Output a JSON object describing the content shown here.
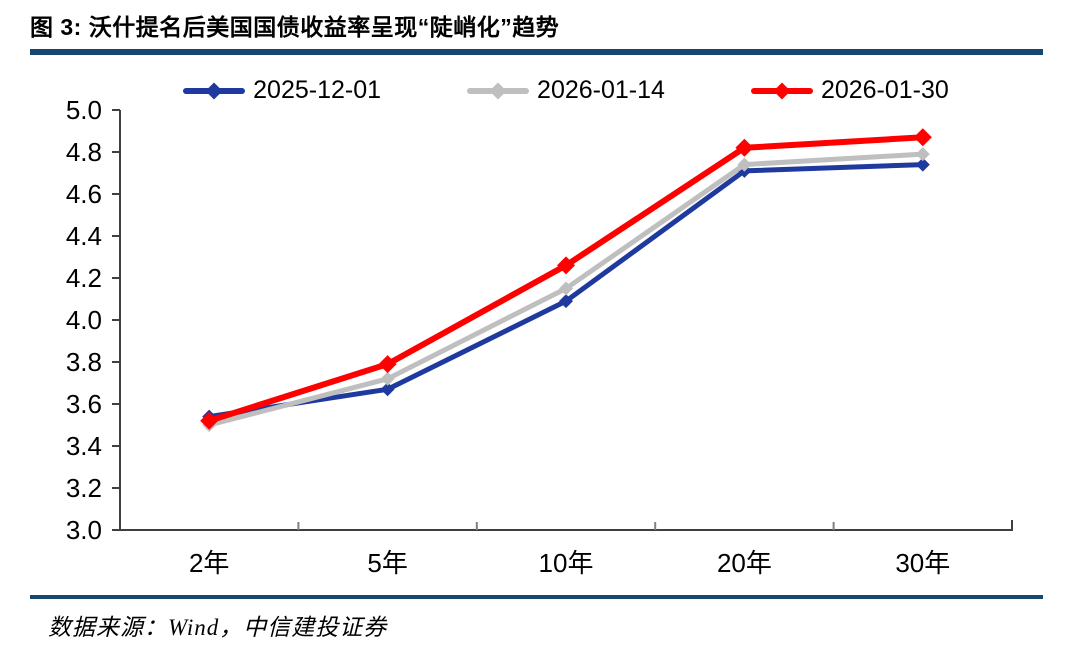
{
  "title": "图 3: 沃什提名后美国国债收益率呈现“陡峭化”趋势",
  "footer": {
    "source_text": "数据来源：Wind，中信建投证券"
  },
  "colors": {
    "rule": "#17466F",
    "axis": "#3F3F3F",
    "tick": "#808080",
    "text": "#000000"
  },
  "chart_data": {
    "type": "line",
    "categories": [
      "2年",
      "5年",
      "10年",
      "20年",
      "30年"
    ],
    "series": [
      {
        "name": "2025-12-01",
        "color": "#1F3A9E",
        "values": [
          3.54,
          3.67,
          4.09,
          4.71,
          4.74
        ]
      },
      {
        "name": "2026-01-14",
        "color": "#BFBFBF",
        "values": [
          3.5,
          3.72,
          4.15,
          4.74,
          4.79
        ]
      },
      {
        "name": "2026-01-30",
        "color": "#FF0000",
        "values": [
          3.52,
          3.79,
          4.26,
          4.82,
          4.87
        ]
      }
    ],
    "title": "",
    "xlabel": "",
    "ylabel": "",
    "ylim": [
      3.0,
      5.0
    ],
    "ytick_step": 0.2,
    "grid": false,
    "legend_position": "top",
    "marker": "diamond"
  }
}
